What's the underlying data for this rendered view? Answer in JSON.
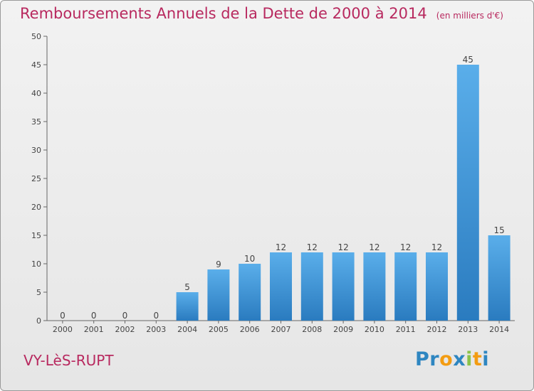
{
  "title": "Remboursements Annuels de la Dette de 2000 à 2014",
  "unit": "(en milliers d'€)",
  "commune": "VY-LèS-RUPT",
  "logo": {
    "text": "Proxiti",
    "letters": [
      {
        "ch": "P",
        "color": "#2e86c1"
      },
      {
        "ch": "r",
        "color": "#2e86c1"
      },
      {
        "ch": "o",
        "color": "#f39c12"
      },
      {
        "ch": "x",
        "color": "#2e86c1"
      },
      {
        "ch": "i",
        "color": "#8bc34a"
      },
      {
        "ch": "t",
        "color": "#f39c12"
      },
      {
        "ch": "i",
        "color": "#2e86c1"
      }
    ]
  },
  "chart_data": {
    "type": "bar",
    "categories": [
      "2000",
      "2001",
      "2002",
      "2003",
      "2004",
      "2005",
      "2006",
      "2007",
      "2008",
      "2009",
      "2010",
      "2011",
      "2012",
      "2013",
      "2014"
    ],
    "values": [
      0,
      0,
      0,
      0,
      5,
      9,
      10,
      12,
      12,
      12,
      12,
      12,
      12,
      45,
      15
    ],
    "ylim": [
      0,
      50
    ],
    "yticks": [
      0,
      5,
      10,
      15,
      20,
      25,
      30,
      35,
      40,
      45,
      50
    ],
    "grid": false,
    "bar_color": "#3a8fd6",
    "title_color": "#b8295f"
  }
}
